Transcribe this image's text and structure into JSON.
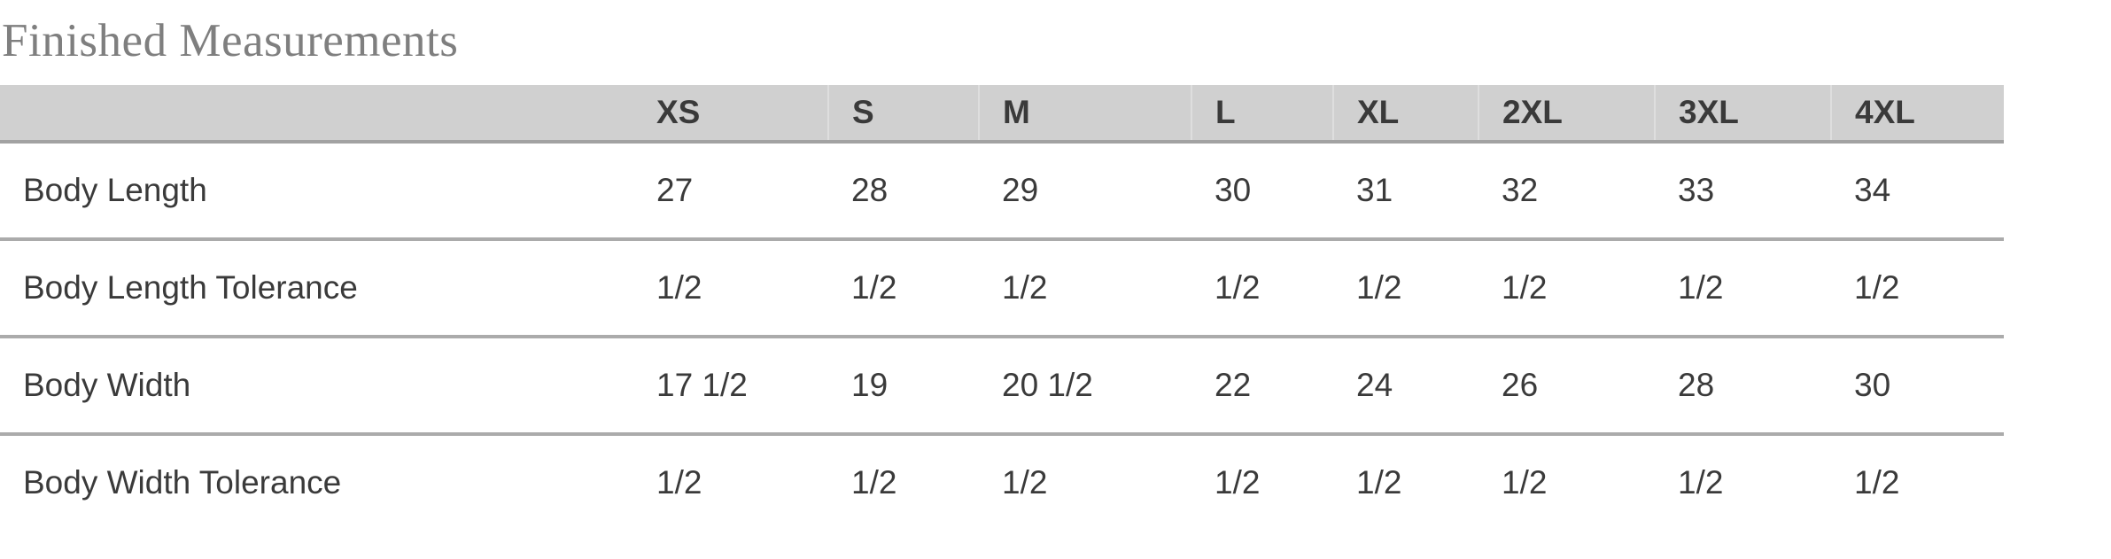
{
  "chart_data": {
    "type": "table",
    "title": "Finished Measurements",
    "columns": [
      "",
      "XS",
      "S",
      "M",
      "L",
      "XL",
      "2XL",
      "3XL",
      "4XL"
    ],
    "rows": [
      {
        "label": "Body Length",
        "values": [
          "27",
          "28",
          "29",
          "30",
          "31",
          "32",
          "33",
          "34"
        ]
      },
      {
        "label": "Body Length Tolerance",
        "values": [
          "1/2",
          "1/2",
          "1/2",
          "1/2",
          "1/2",
          "1/2",
          "1/2",
          "1/2"
        ]
      },
      {
        "label": "Body Width",
        "values": [
          "17 1/2",
          "19",
          "20 1/2",
          "22",
          "24",
          "26",
          "28",
          "30"
        ]
      },
      {
        "label": "Body Width Tolerance",
        "values": [
          "1/2",
          "1/2",
          "1/2",
          "1/2",
          "1/2",
          "1/2",
          "1/2",
          "1/2"
        ]
      }
    ],
    "layout_hints": {
      "header_background": "#d0d0d0",
      "header_divider": "#dedede",
      "header_bottom_border": "#a2a2a2",
      "row_separator": "#ababab",
      "body_text_color": "#3a3a3a",
      "title_text_color": "#7f7f7f",
      "grid": "horizontal-rules-only",
      "last_row_clipped": true
    }
  }
}
